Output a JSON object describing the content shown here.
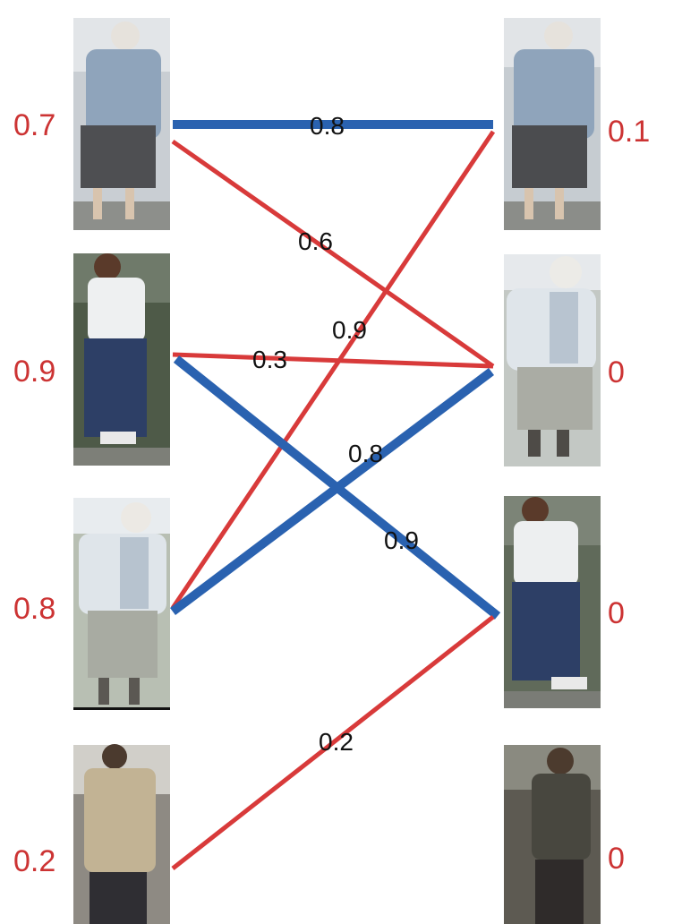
{
  "colors": {
    "matched_edge": "#2a62b0",
    "candidate_edge": "#d83a3a",
    "score_text": "#cc3333",
    "weight_text": "#111111"
  },
  "left_scores": [
    "0.7",
    "0.9",
    "0.8",
    "0.2"
  ],
  "right_scores": [
    "0.1",
    "0",
    "0",
    "0"
  ],
  "edges": [
    {
      "from": 0,
      "to": 0,
      "weight": "0.8",
      "kind": "matched"
    },
    {
      "from": 0,
      "to": 1,
      "weight": "0.6",
      "kind": "candidate"
    },
    {
      "from": 2,
      "to": 0,
      "weight": "0.9",
      "kind": "candidate"
    },
    {
      "from": 1,
      "to": 1,
      "weight": "0.3",
      "kind": "candidate"
    },
    {
      "from": 1,
      "to": 2,
      "weight": "0.9",
      "kind": "matched"
    },
    {
      "from": 2,
      "to": 1,
      "weight": "0.8",
      "kind": "matched"
    },
    {
      "from": 3,
      "to": 2,
      "weight": "0.2",
      "kind": "candidate"
    }
  ]
}
